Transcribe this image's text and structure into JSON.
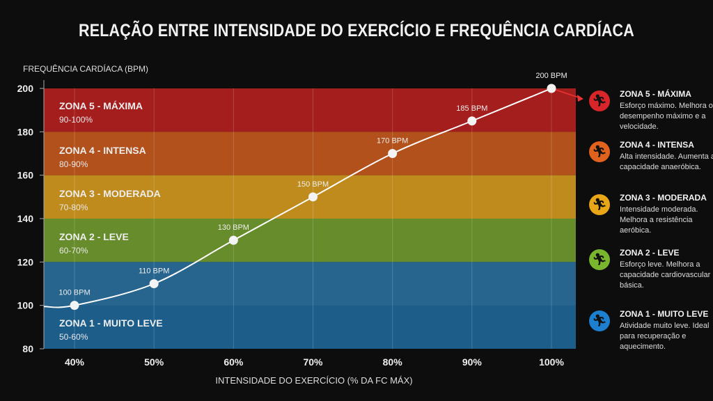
{
  "title": "RELAÇÃO ENTRE INTENSIDADE DO EXERCÍCIO E FREQUÊNCIA CARDÍACA",
  "chart_data": {
    "type": "line",
    "title": "RELAÇÃO ENTRE INTENSIDADE DO EXERCÍCIO E FREQUÊNCIA CARDÍACA",
    "xlabel": "INTENSIDADE DO EXERCÍCIO (% DA FC MÁX)",
    "ylabel": "FREQUÊNCIA CARDÍACA (BPM)",
    "x": [
      40,
      50,
      60,
      70,
      80,
      90,
      100
    ],
    "x_tick_labels": [
      "40%",
      "50%",
      "60%",
      "70%",
      "80%",
      "90%",
      "100%"
    ],
    "y": [
      100,
      110,
      130,
      150,
      170,
      185,
      200
    ],
    "point_labels": [
      "100 BPM",
      "110 BPM",
      "130 BPM",
      "150 BPM",
      "170 BPM",
      "185 BPM",
      "200 BPM"
    ],
    "ylim": [
      80,
      200
    ],
    "y_ticks": [
      80,
      100,
      120,
      140,
      160,
      180,
      200
    ],
    "xlim": [
      36,
      103
    ],
    "zones": [
      {
        "name": "ZONA 5 - MÁXIMA",
        "range": "90-100%",
        "bpm": [
          180,
          200
        ],
        "color": "#a41e1e"
      },
      {
        "name": "ZONA 4 - INTENSA",
        "range": "80-90%",
        "bpm": [
          160,
          180
        ],
        "color": "#b2511c"
      },
      {
        "name": "ZONA 3 - MODERADA",
        "range": "70-80%",
        "bpm": [
          140,
          160
        ],
        "color": "#bf8b1d"
      },
      {
        "name": "ZONA 2 - LEVE",
        "range": "60-70%",
        "bpm": [
          120,
          140
        ],
        "color": "#678c2b"
      },
      {
        "name": "ZONA 1 - MUITO LEVE",
        "range": "50-60%",
        "bpm": [
          80,
          120
        ],
        "color": "#1c5d8a"
      }
    ]
  },
  "legend": [
    {
      "title": "ZONA 5 - MÁXIMA",
      "desc": "Esforço máximo. Melhora o desempenho máximo e a velocidade.",
      "color": "#d8252a",
      "icon": "runner-icon"
    },
    {
      "title": "ZONA 4 - INTENSA",
      "desc": "Alta intensidade. Aumenta a capacidade anaeróbica.",
      "color": "#e0621c",
      "icon": "runner-icon"
    },
    {
      "title": "ZONA 3 - MODERADA",
      "desc": "Intensidade moderada. Melhora a resistência aeróbica.",
      "color": "#e9a717",
      "icon": "runner-icon"
    },
    {
      "title": "ZONA 2 - LEVE",
      "desc": "Esforço leve. Melhora a capacidade cardiovascular básica.",
      "color": "#79b52d",
      "icon": "runner-icon"
    },
    {
      "title": "ZONA 1 - MUITO LEVE",
      "desc": "Atividade muito leve. Ideal para recuperação e aquecimento.",
      "color": "#1d7fd0",
      "icon": "runner-icon"
    }
  ]
}
